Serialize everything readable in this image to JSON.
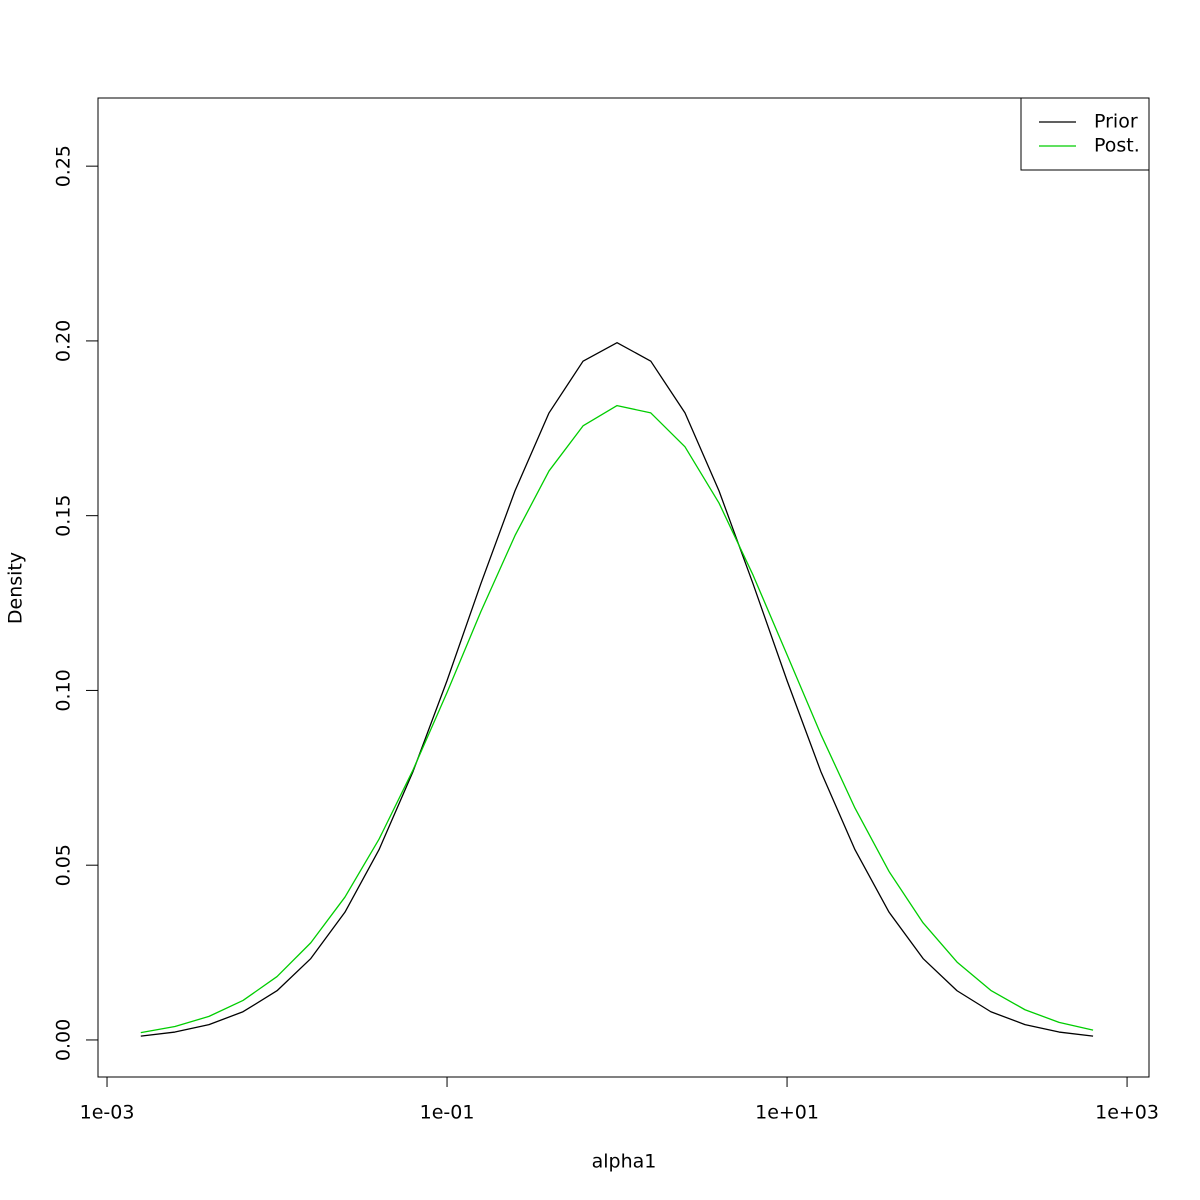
{
  "chart_data": {
    "type": "line",
    "x_label": "alpha1",
    "y_label": "Density",
    "x": [
      0.00158,
      0.00251,
      0.00398,
      0.00631,
      0.01,
      0.0158,
      0.0251,
      0.0398,
      0.0631,
      0.1,
      0.158,
      0.251,
      0.398,
      0.631,
      1,
      1.58,
      2.51,
      3.98,
      6.31,
      10,
      15.8,
      25.1,
      39.8,
      63.1,
      100,
      158,
      251,
      398,
      631
    ],
    "series": [
      {
        "name": "Prior",
        "color": "#000000",
        "values": [
          0.0011,
          0.00226,
          0.00439,
          0.00807,
          0.01408,
          0.02329,
          0.03657,
          0.05442,
          0.07682,
          0.1028,
          0.1305,
          0.1571,
          0.1794,
          0.1942,
          0.1995,
          0.1942,
          0.1794,
          0.1571,
          0.1305,
          0.1028,
          0.07682,
          0.05442,
          0.03657,
          0.02329,
          0.01408,
          0.00807,
          0.00439,
          0.00226,
          0.0011
        ]
      },
      {
        "name": "Post.",
        "color": "#00cd00",
        "values": [
          0.0021,
          0.00385,
          0.00674,
          0.0113,
          0.01813,
          0.02781,
          0.04088,
          0.05743,
          0.07726,
          0.09941,
          0.1225,
          0.1443,
          0.1628,
          0.1757,
          0.1815,
          0.1794,
          0.1697,
          0.1536,
          0.133,
          0.1102,
          0.08745,
          0.06633,
          0.04821,
          0.0335,
          0.02228,
          0.01418,
          0.00864,
          0.00503,
          0.00281
        ]
      }
    ],
    "x_log": true,
    "xlim": [
      0.000885,
      1346
    ],
    "xticks": [
      {
        "value": 0.001,
        "label": "1e-03"
      },
      {
        "value": 0.1,
        "label": "1e-01"
      },
      {
        "value": 10,
        "label": "1e+01"
      },
      {
        "value": 1000,
        "label": "1e+03"
      }
    ],
    "ylim": [
      -0.0106,
      0.2695
    ],
    "yticks": [
      {
        "value": 0,
        "label": "0.00"
      },
      0.05,
      {
        "value": 0.1,
        "label": "0.10"
      },
      0.15,
      {
        "value": 0.2,
        "label": "0.20"
      },
      0.25
    ],
    "legend": "top-right"
  }
}
